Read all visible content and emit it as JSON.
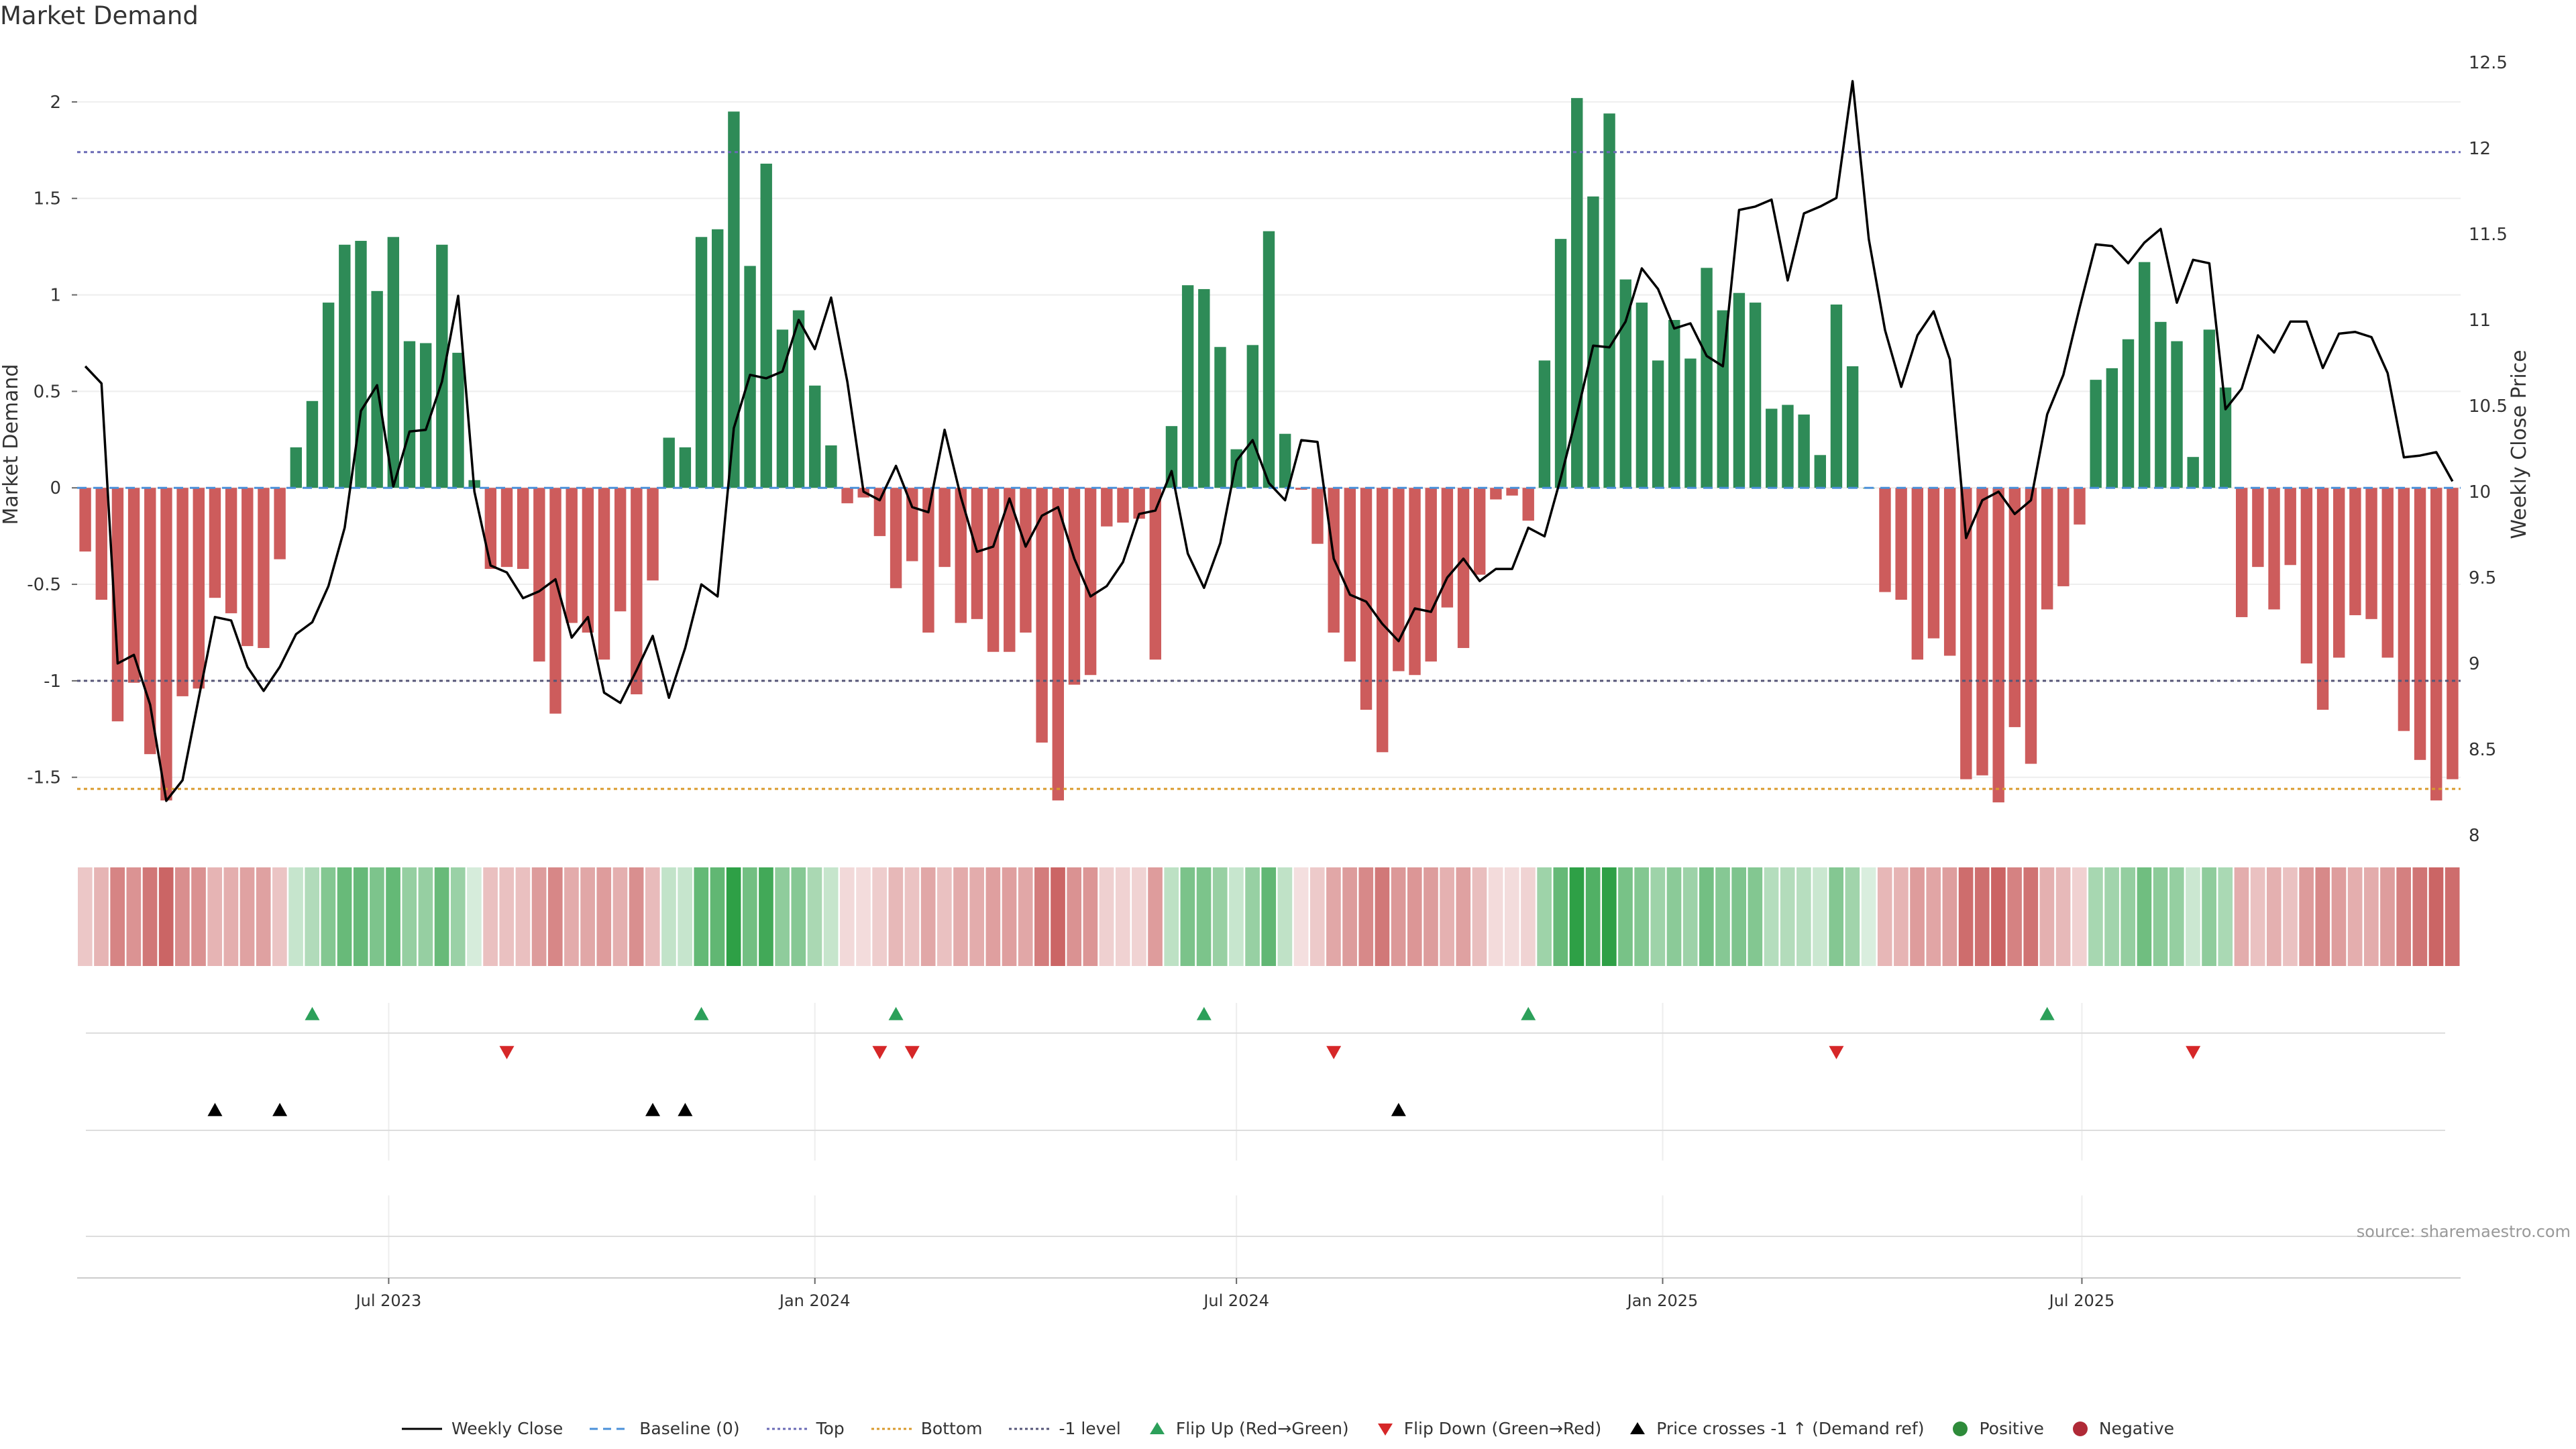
{
  "title": "Market Demand",
  "source": "source: sharemaestro.com",
  "colors": {
    "positive": "#2e8b57",
    "negative": "#cd5c5c",
    "price": "#000000",
    "baseline": "#4a90d9",
    "top": "#6a6ab5",
    "bottom": "#d99a2b",
    "minus1": "#555577",
    "flip_up": "#2ca05a",
    "flip_down": "#d62728",
    "cross": "#000000",
    "grid": "#eeeeee"
  },
  "chart_data": {
    "type": "bar",
    "title": "Market Demand",
    "ylabel_left": "Market Demand",
    "ylabel_right": "Weekly Close Price",
    "ylim_left": [
      -1.8,
      2.25
    ],
    "ylim_right": [
      8.0,
      12.55
    ],
    "yticks_left": [
      -1.5,
      -1,
      -0.5,
      0,
      0.5,
      1,
      1.5,
      2
    ],
    "yticks_right": [
      8,
      8.5,
      9,
      9.5,
      10,
      10.5,
      11,
      11.5,
      12,
      12.5
    ],
    "x_start": "2023-02-20",
    "x_step_days": 7,
    "x_ticks": [
      {
        "label": "Jul 2023",
        "date": "2023-07-01"
      },
      {
        "label": "Jan 2024",
        "date": "2024-01-01"
      },
      {
        "label": "Jul 2024",
        "date": "2024-07-01"
      },
      {
        "label": "Jan 2025",
        "date": "2025-01-01"
      },
      {
        "label": "Jul 2025",
        "date": "2025-07-01"
      }
    ],
    "reference_lines": {
      "top": 1.74,
      "bottom": -1.56,
      "minus1": -1.0,
      "baseline": 0
    },
    "demand": [
      -0.33,
      -0.58,
      -1.21,
      -1.01,
      -1.38,
      -1.62,
      -1.08,
      -1.04,
      -0.57,
      -0.65,
      -0.82,
      -0.83,
      -0.37,
      0.21,
      0.45,
      0.96,
      1.26,
      1.28,
      1.02,
      1.3,
      0.76,
      0.75,
      1.26,
      0.7,
      0.04,
      -0.42,
      -0.41,
      -0.42,
      -0.9,
      -1.17,
      -0.7,
      -0.75,
      -0.89,
      -0.64,
      -1.07,
      -0.48,
      0.26,
      0.21,
      1.3,
      1.34,
      1.95,
      1.15,
      1.68,
      0.82,
      0.92,
      0.53,
      0.22,
      -0.08,
      -0.05,
      -0.25,
      -0.52,
      -0.38,
      -0.75,
      -0.41,
      -0.7,
      -0.68,
      -0.85,
      -0.85,
      -0.75,
      -1.32,
      -1.62,
      -1.02,
      -0.97,
      -0.2,
      -0.18,
      -0.16,
      -0.89,
      0.32,
      1.05,
      1.03,
      0.73,
      0.2,
      0.74,
      1.33,
      0.28,
      -0.01,
      -0.29,
      -0.75,
      -0.9,
      -1.15,
      -1.37,
      -0.95,
      -0.97,
      -0.9,
      -0.62,
      -0.83,
      -0.45,
      -0.06,
      -0.04,
      -0.17,
      0.66,
      1.29,
      2.02,
      1.51,
      1.94,
      1.08,
      0.96,
      0.66,
      0.87,
      0.67,
      1.14,
      0.92,
      1.01,
      0.96,
      0.41,
      0.43,
      0.38,
      0.17,
      0.95,
      0.63,
      0.0,
      -0.54,
      -0.58,
      -0.89,
      -0.78,
      -0.87,
      -1.51,
      -1.49,
      -1.63,
      -1.24,
      -1.43,
      -0.63,
      -0.51,
      -0.19,
      0.56,
      0.62,
      0.77,
      1.17,
      0.86,
      0.76,
      0.16,
      0.82,
      0.52,
      -0.67,
      -0.41,
      -0.63,
      -0.4,
      -0.91,
      -1.15,
      -0.88,
      -0.66,
      -0.68,
      -0.88,
      -1.26,
      -1.41,
      -1.62,
      -1.51
    ],
    "weekly_close": [
      10.73,
      10.63,
      9.0,
      9.05,
      8.76,
      8.2,
      8.32,
      8.8,
      9.27,
      9.25,
      8.98,
      8.84,
      8.98,
      9.17,
      9.24,
      9.45,
      9.79,
      10.47,
      10.62,
      10.03,
      10.35,
      10.36,
      10.64,
      11.14,
      10.0,
      9.57,
      9.53,
      9.38,
      9.42,
      9.49,
      9.15,
      9.27,
      8.83,
      8.77,
      8.96,
      9.16,
      8.8,
      9.09,
      9.46,
      9.39,
      10.37,
      10.68,
      10.66,
      10.7,
      11.0,
      10.83,
      11.13,
      10.64,
      10.0,
      9.95,
      10.15,
      9.91,
      9.88,
      10.36,
      9.97,
      9.65,
      9.68,
      9.96,
      9.68,
      9.86,
      9.91,
      9.61,
      9.39,
      9.45,
      9.59,
      9.87,
      9.89,
      10.12,
      9.64,
      9.44,
      9.7,
      10.18,
      10.3,
      10.05,
      9.95,
      10.3,
      10.29,
      9.61,
      9.4,
      9.36,
      9.23,
      9.13,
      9.32,
      9.3,
      9.5,
      9.61,
      9.48,
      9.55,
      9.55,
      9.79,
      9.74,
      10.08,
      10.45,
      10.85,
      10.84,
      10.99,
      11.3,
      11.18,
      10.95,
      10.98,
      10.79,
      10.73,
      11.64,
      11.66,
      11.7,
      11.23,
      11.62,
      11.66,
      11.71,
      12.39,
      11.47,
      10.94,
      10.61,
      10.91,
      11.05,
      10.77,
      9.73,
      9.95,
      10.0,
      9.87,
      9.95,
      10.45,
      10.68,
      11.07,
      11.44,
      11.43,
      11.33,
      11.45,
      11.53,
      11.1,
      11.35,
      11.33,
      10.48,
      10.6,
      10.91,
      10.81,
      10.99,
      10.99,
      10.72,
      10.92,
      10.93,
      10.9,
      10.69,
      10.2,
      10.21,
      10.23,
      10.06
    ],
    "series": [
      {
        "name": "Weekly Close",
        "type": "line"
      },
      {
        "name": "Market Demand",
        "type": "bar"
      }
    ]
  },
  "flip_up_idx": [
    14,
    38,
    50,
    69,
    89,
    121
  ],
  "flip_down_idx": [
    26,
    49,
    51,
    77,
    108,
    130
  ],
  "cross_idx": [
    8,
    12,
    35,
    37,
    81
  ],
  "legend": {
    "weekly_close": "Weekly Close",
    "baseline": "Baseline (0)",
    "top": "Top",
    "bottom": "Bottom",
    "minus1": "-1 level",
    "flip_up": "Flip Up (Red→Green)",
    "flip_down": "Flip Down (Green→Red)",
    "cross": "Price crosses -1 ↑ (Demand ref)",
    "positive": "Positive",
    "negative": "Negative"
  }
}
